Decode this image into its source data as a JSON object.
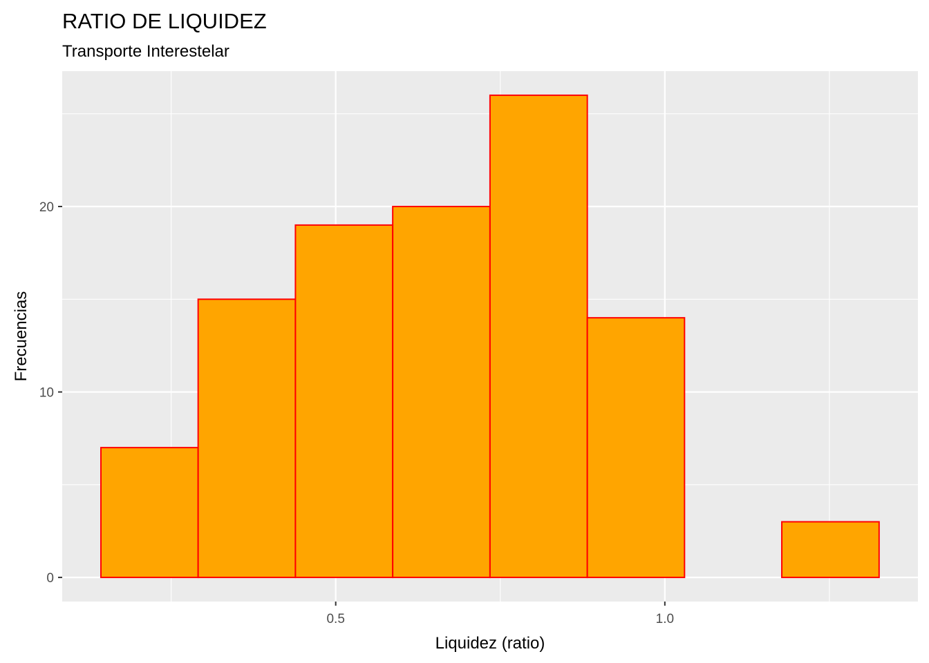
{
  "chart_data": {
    "type": "bar",
    "title": "RATIO DE LIQUIDEZ",
    "subtitle": "Transporte Interestelar",
    "xlabel": "Liquidez (ratio)",
    "ylabel": "Frecuencias",
    "bins": [
      {
        "x0": 0.1433,
        "x1": 0.291,
        "count": 7
      },
      {
        "x0": 0.291,
        "x1": 0.4388,
        "count": 15
      },
      {
        "x0": 0.4388,
        "x1": 0.5866,
        "count": 19
      },
      {
        "x0": 0.5866,
        "x1": 0.7344,
        "count": 20
      },
      {
        "x0": 0.7344,
        "x1": 0.8822,
        "count": 26
      },
      {
        "x0": 0.8822,
        "x1": 1.0299,
        "count": 14
      },
      {
        "x0": 1.0299,
        "x1": 1.1777,
        "count": 0
      },
      {
        "x0": 1.1777,
        "x1": 1.3255,
        "count": 3
      }
    ],
    "xlim": [
      0.0845,
      1.3845
    ],
    "ylim": [
      -1.3,
      27.3
    ],
    "x_ticks": [
      0.5,
      1.0
    ],
    "x_tick_labels": [
      "0.5",
      "1.0"
    ],
    "y_ticks": [
      0,
      10,
      20
    ],
    "y_tick_labels": [
      "0",
      "10",
      "20"
    ],
    "x_minor_ticks": [
      0.25,
      0.75,
      1.25
    ],
    "y_minor_ticks": [
      5,
      15,
      25
    ],
    "grid": true,
    "colors": {
      "fill": "#FFA500",
      "outline": "#FF0000",
      "panel": "#EBEBEB",
      "grid": "#FFFFFF"
    }
  }
}
